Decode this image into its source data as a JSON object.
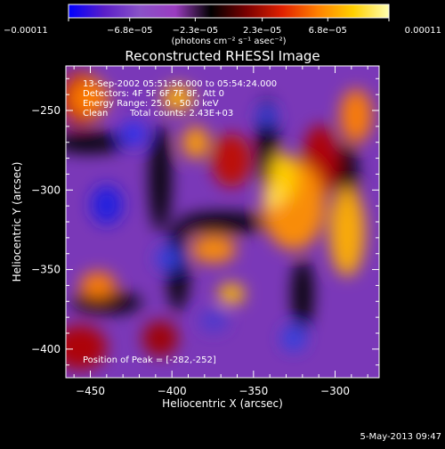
{
  "chart_data": {
    "type": "heatmap",
    "title": "Reconstructed RHESSI Image",
    "xlabel": "Heliocentric X (arcsec)",
    "ylabel": "Heliocentric Y (arcsec)",
    "xlim": [
      -465,
      -273
    ],
    "ylim": [
      -418,
      -222
    ],
    "x_ticks": [
      -450,
      -400,
      -350,
      -300
    ],
    "x_tick_labels": [
      "−450",
      "−400",
      "−350",
      "−300"
    ],
    "y_ticks": [
      -400,
      -350,
      -300,
      -250
    ],
    "y_tick_labels": [
      "−400",
      "−350",
      "−300",
      "−250"
    ],
    "colorbar": {
      "range": [
        -0.00011,
        0.00011
      ],
      "ticks": [
        -0.00011,
        -6.8e-05,
        -2.3e-05,
        2.3e-05,
        6.8e-05,
        0.00011
      ],
      "tick_labels": [
        "−0.00011",
        "−6.8e−05",
        "−2.3e−05",
        "2.3e−05",
        "6.8e−05",
        "0.00011"
      ],
      "units": "(photons cm⁻² s⁻¹ asec⁻²)",
      "colormap": [
        "#0000ff",
        "#5a1ec8",
        "#8a52c8",
        "#9a3cc0",
        "#000000",
        "#7a0000",
        "#e02000",
        "#ff8000",
        "#ffd000",
        "#ffffb0"
      ]
    },
    "annotations": {
      "time": "13-Sep-2002 05:51:56.000 to 05:54:24.000",
      "detectors": "Detectors: 4F 5F 6F 7F 8F, Att 0",
      "energy": "Energy Range: 25.0 - 50.0 keV",
      "clean_label": "Clean",
      "total_counts": "Total counts: 2.43E+03",
      "peak": "Position of Peak = [-282,-252]"
    },
    "peak_position": [
      -282,
      -252
    ],
    "date_stamp": "5-May-2013 09:47"
  }
}
